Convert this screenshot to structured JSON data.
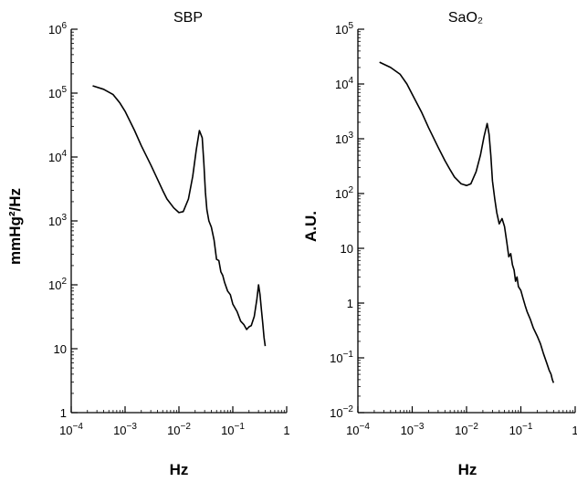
{
  "chart_data": [
    {
      "type": "line",
      "title": "SBP",
      "xlabel": "Hz",
      "ylabel": "mmHg²/Hz",
      "xscale": "log",
      "yscale": "log",
      "xlim": [
        0.0001,
        1
      ],
      "ylim": [
        1,
        1000000
      ],
      "xticks": [
        {
          "value": 0.0001,
          "base": "10",
          "exp": "−4"
        },
        {
          "value": 0.001,
          "base": "10",
          "exp": "−3"
        },
        {
          "value": 0.01,
          "base": "10",
          "exp": "−2"
        },
        {
          "value": 0.1,
          "base": "10",
          "exp": "−1"
        },
        {
          "value": 1,
          "base": "1",
          "exp": ""
        }
      ],
      "yticks": [
        {
          "value": 1,
          "base": "1",
          "exp": ""
        },
        {
          "value": 10,
          "base": "10",
          "exp": ""
        },
        {
          "value": 100,
          "base": "10",
          "exp": "2"
        },
        {
          "value": 1000,
          "base": "10",
          "exp": "3"
        },
        {
          "value": 10000,
          "base": "10",
          "exp": "4"
        },
        {
          "value": 100000,
          "base": "10",
          "exp": "5"
        },
        {
          "value": 1000000,
          "base": "10",
          "exp": "6"
        }
      ],
      "grid": false,
      "series": [
        {
          "x": [
            0.00025,
            0.0004,
            0.0006,
            0.0008,
            0.001,
            0.0015,
            0.002,
            0.003,
            0.004,
            0.005,
            0.006,
            0.008,
            0.01,
            0.012,
            0.015,
            0.018,
            0.021,
            0.024,
            0.027,
            0.029,
            0.031,
            0.033,
            0.036,
            0.04,
            0.045,
            0.05,
            0.055,
            0.06,
            0.065,
            0.07,
            0.08,
            0.09,
            0.1,
            0.12,
            0.14,
            0.16,
            0.18,
            0.2,
            0.22,
            0.25,
            0.28,
            0.3,
            0.32,
            0.34,
            0.36,
            0.38,
            0.4
          ],
          "y": [
            130000,
            115000,
            95000,
            70000,
            52000,
            26000,
            15000,
            7500,
            4500,
            3000,
            2200,
            1600,
            1350,
            1400,
            2200,
            5000,
            13000,
            26000,
            20000,
            8000,
            2800,
            1500,
            1000,
            800,
            500,
            250,
            240,
            160,
            140,
            110,
            80,
            70,
            50,
            38,
            27,
            24,
            20,
            22,
            23,
            32,
            60,
            100,
            70,
            40,
            25,
            15,
            11
          ]
        }
      ]
    },
    {
      "type": "line",
      "title": "SaO₂",
      "xlabel": "Hz",
      "ylabel": "A.U.",
      "xscale": "log",
      "yscale": "log",
      "xlim": [
        0.0001,
        1
      ],
      "ylim": [
        0.01,
        100000
      ],
      "xticks": [
        {
          "value": 0.0001,
          "base": "10",
          "exp": "−4"
        },
        {
          "value": 0.001,
          "base": "10",
          "exp": "−3"
        },
        {
          "value": 0.01,
          "base": "10",
          "exp": "−2"
        },
        {
          "value": 0.1,
          "base": "10",
          "exp": "−1"
        },
        {
          "value": 1,
          "base": "1",
          "exp": ""
        }
      ],
      "yticks": [
        {
          "value": 0.01,
          "base": "10",
          "exp": "−2"
        },
        {
          "value": 0.1,
          "base": "10",
          "exp": "−1"
        },
        {
          "value": 1,
          "base": "1",
          "exp": ""
        },
        {
          "value": 10,
          "base": "10",
          "exp": ""
        },
        {
          "value": 100,
          "base": "10",
          "exp": "2"
        },
        {
          "value": 1000,
          "base": "10",
          "exp": "3"
        },
        {
          "value": 10000,
          "base": "10",
          "exp": "4"
        },
        {
          "value": 100000,
          "base": "10",
          "exp": "5"
        }
      ],
      "grid": false,
      "series": [
        {
          "x": [
            0.00025,
            0.0004,
            0.0006,
            0.0008,
            0.001,
            0.0015,
            0.002,
            0.003,
            0.004,
            0.005,
            0.006,
            0.008,
            0.01,
            0.012,
            0.015,
            0.018,
            0.021,
            0.024,
            0.026,
            0.028,
            0.03,
            0.033,
            0.036,
            0.04,
            0.045,
            0.05,
            0.055,
            0.06,
            0.065,
            0.07,
            0.075,
            0.08,
            0.085,
            0.09,
            0.1,
            0.11,
            0.12,
            0.13,
            0.15,
            0.17,
            0.2,
            0.23,
            0.26,
            0.3,
            0.33,
            0.36,
            0.38,
            0.4
          ],
          "y": [
            25000,
            20000,
            15000,
            10000,
            6500,
            3000,
            1600,
            700,
            400,
            270,
            200,
            150,
            140,
            150,
            250,
            500,
            1100,
            1900,
            1200,
            500,
            170,
            80,
            45,
            28,
            35,
            25,
            13,
            7,
            8,
            5,
            4,
            2.5,
            3,
            2,
            1.7,
            1.2,
            0.9,
            0.7,
            0.5,
            0.35,
            0.25,
            0.18,
            0.12,
            0.08,
            0.06,
            0.05,
            0.04,
            0.035
          ]
        }
      ]
    }
  ]
}
